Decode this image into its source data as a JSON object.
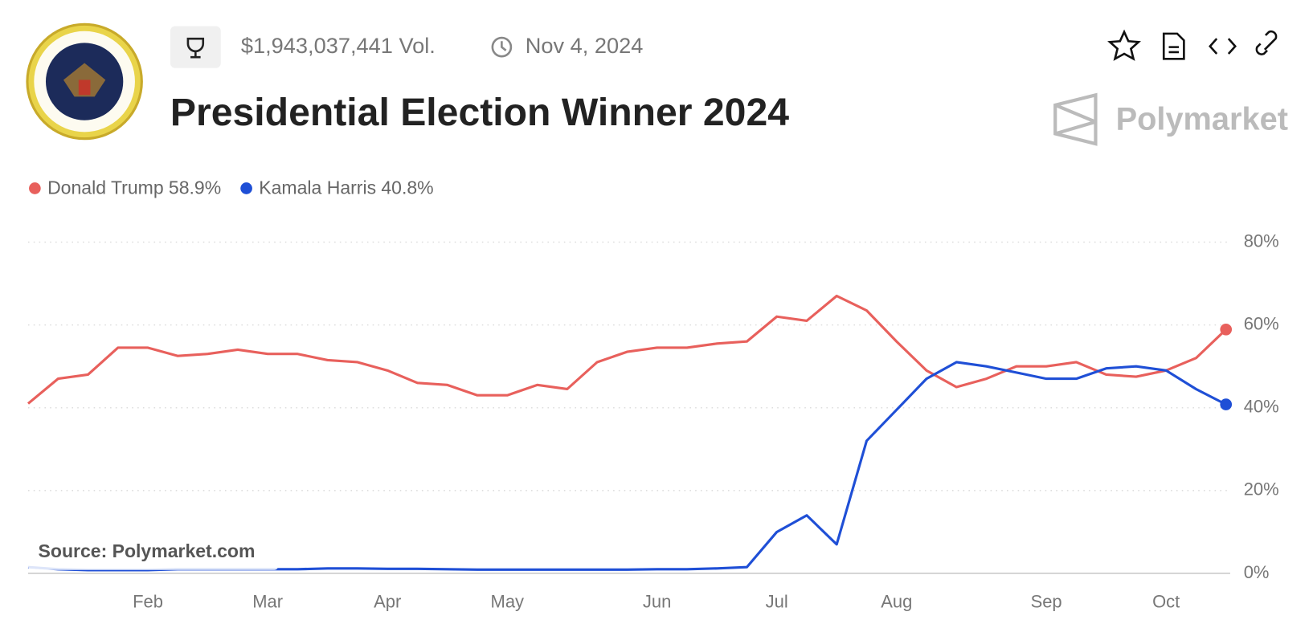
{
  "header": {
    "volume": "$1,943,037,441 Vol.",
    "date": "Nov 4, 2024",
    "title": "Presidential Election Winner 2024",
    "brand": "Polymarket"
  },
  "source": "Source: Polymarket.com",
  "chart_data": {
    "type": "line",
    "categories": [
      null,
      null,
      null,
      null,
      "Feb",
      null,
      null,
      null,
      "Mar",
      null,
      null,
      null,
      "Apr",
      null,
      null,
      null,
      "May",
      null,
      null,
      null,
      null,
      "Jun",
      null,
      null,
      null,
      "Jul",
      null,
      null,
      null,
      "Aug",
      null,
      null,
      null,
      null,
      "Sep",
      null,
      null,
      null,
      "Oct",
      null,
      null
    ],
    "series": [
      {
        "name": "Donald Trump",
        "legend_value": "58.9%",
        "color": "#e8605c",
        "values": [
          41,
          47,
          48,
          54.5,
          54.5,
          52.5,
          53,
          54,
          53,
          53,
          51.5,
          51,
          49,
          46,
          45.5,
          43,
          43,
          45.5,
          44.5,
          51,
          53.5,
          54.5,
          54.5,
          55.5,
          56,
          62,
          61,
          67,
          63.5,
          56,
          49,
          45,
          47,
          50,
          50,
          51,
          48,
          47.5,
          49,
          52,
          58.9
        ]
      },
      {
        "name": "Kamala Harris",
        "legend_value": "40.8%",
        "color": "#1f4fd6",
        "values": [
          1.5,
          1,
          0.8,
          0.8,
          0.8,
          1,
          1,
          1,
          1,
          1,
          1.2,
          1.2,
          1.1,
          1.1,
          1,
          0.9,
          0.9,
          0.9,
          0.9,
          0.9,
          0.9,
          1,
          1,
          1.2,
          1.5,
          10,
          14,
          7,
          32,
          39.5,
          47,
          51,
          50,
          48.5,
          47,
          47,
          49.5,
          50,
          49,
          44.5,
          40.8
        ]
      }
    ],
    "ylim": [
      0,
      80
    ],
    "yticks": [
      {
        "value": 0,
        "label": "0%"
      },
      {
        "value": 20,
        "label": "20%"
      },
      {
        "value": 40,
        "label": "40%"
      },
      {
        "value": 60,
        "label": "60%"
      },
      {
        "value": 80,
        "label": "80%"
      }
    ],
    "grid": true
  }
}
